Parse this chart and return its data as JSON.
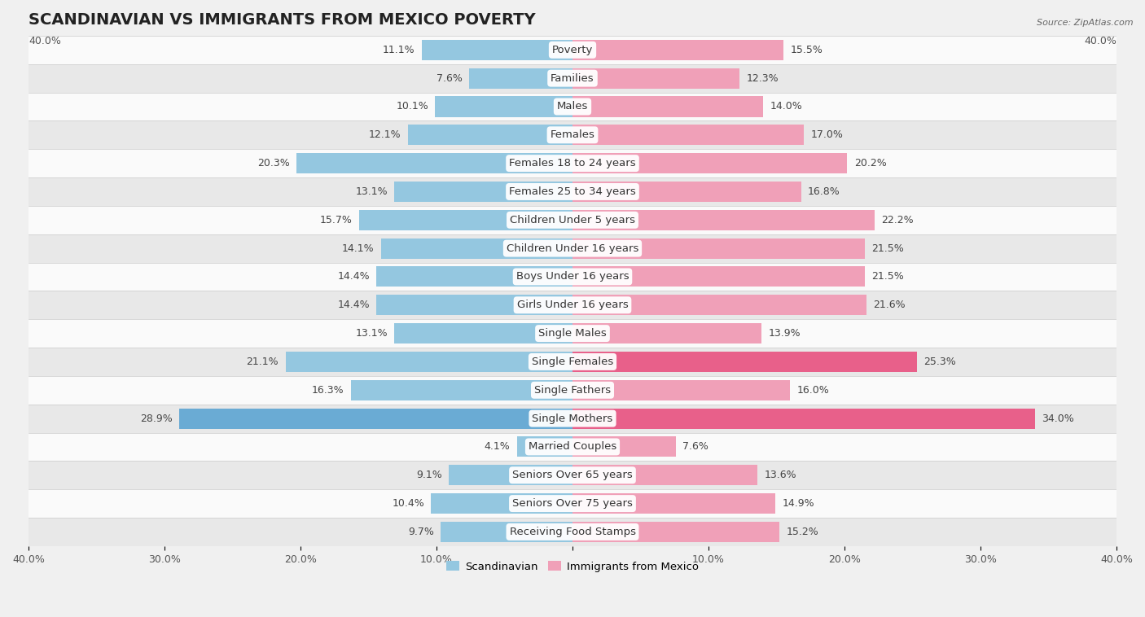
{
  "title": "SCANDINAVIAN VS IMMIGRANTS FROM MEXICO POVERTY",
  "source": "Source: ZipAtlas.com",
  "categories": [
    "Poverty",
    "Families",
    "Males",
    "Females",
    "Females 18 to 24 years",
    "Females 25 to 34 years",
    "Children Under 5 years",
    "Children Under 16 years",
    "Boys Under 16 years",
    "Girls Under 16 years",
    "Single Males",
    "Single Females",
    "Single Fathers",
    "Single Mothers",
    "Married Couples",
    "Seniors Over 65 years",
    "Seniors Over 75 years",
    "Receiving Food Stamps"
  ],
  "scandinavian": [
    11.1,
    7.6,
    10.1,
    12.1,
    20.3,
    13.1,
    15.7,
    14.1,
    14.4,
    14.4,
    13.1,
    21.1,
    16.3,
    28.9,
    4.1,
    9.1,
    10.4,
    9.7
  ],
  "mexico": [
    15.5,
    12.3,
    14.0,
    17.0,
    20.2,
    16.8,
    22.2,
    21.5,
    21.5,
    21.6,
    13.9,
    25.3,
    16.0,
    34.0,
    7.6,
    13.6,
    14.9,
    15.2
  ],
  "scandinavian_color": "#94c7e0",
  "mexico_color": "#f0a0b8",
  "scandinavian_highlight": "#6aabd4",
  "mexico_highlight": "#e8608a",
  "axis_max": 40.0,
  "background_color": "#f0f0f0",
  "row_color_light": "#fafafa",
  "row_color_dark": "#e8e8e8",
  "bar_height": 0.72,
  "title_fontsize": 14,
  "label_fontsize": 9.5,
  "tick_fontsize": 9,
  "value_fontsize": 9
}
